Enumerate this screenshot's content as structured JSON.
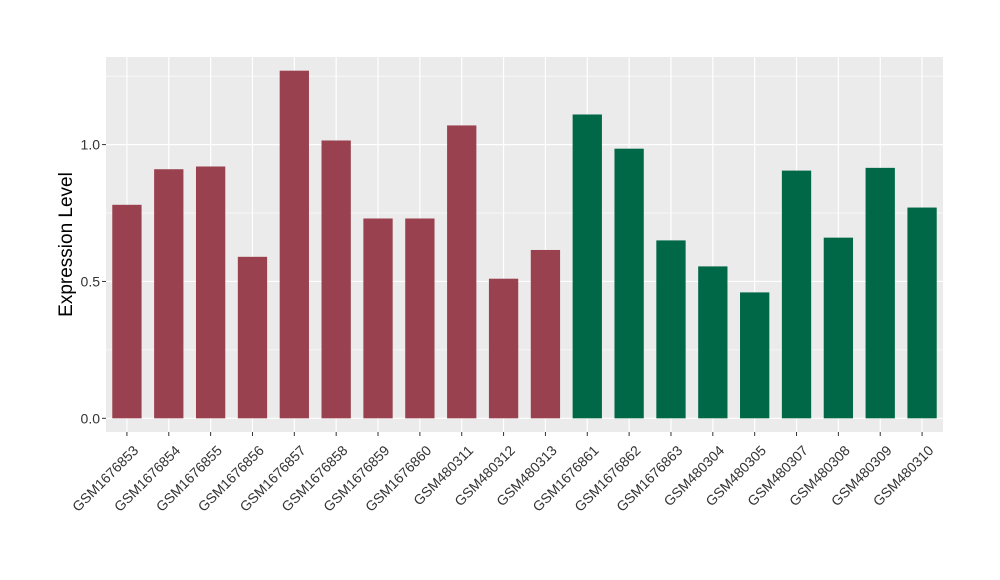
{
  "chart_data": {
    "type": "bar",
    "title": "",
    "xlabel": "",
    "ylabel": "Expression Level",
    "ylim": [
      -0.05,
      1.32
    ],
    "yticks": [
      0.0,
      0.5,
      1.0
    ],
    "ytick_labels": [
      "0.0",
      "0.5",
      "1.0"
    ],
    "grid": true,
    "legend": "none",
    "colors": {
      "panel": "#EBEBEB",
      "grid": "#FFFFFF",
      "group_a": "#9A4150",
      "group_b": "#006847"
    },
    "categories": [
      "GSM1676853",
      "GSM1676854",
      "GSM1676855",
      "GSM1676856",
      "GSM1676857",
      "GSM1676858",
      "GSM1676859",
      "GSM1676860",
      "GSM480311",
      "GSM480312",
      "GSM480313",
      "GSM1676861",
      "GSM1676862",
      "GSM1676863",
      "GSM480304",
      "GSM480305",
      "GSM480307",
      "GSM480308",
      "GSM480309",
      "GSM480310"
    ],
    "values": [
      0.78,
      0.91,
      0.92,
      0.59,
      1.27,
      1.015,
      0.73,
      0.73,
      1.07,
      0.51,
      0.615,
      1.11,
      0.985,
      0.65,
      0.555,
      0.46,
      0.905,
      0.66,
      0.915,
      0.77
    ],
    "groups": [
      "a",
      "a",
      "a",
      "a",
      "a",
      "a",
      "a",
      "a",
      "a",
      "a",
      "a",
      "b",
      "b",
      "b",
      "b",
      "b",
      "b",
      "b",
      "b",
      "b"
    ]
  }
}
